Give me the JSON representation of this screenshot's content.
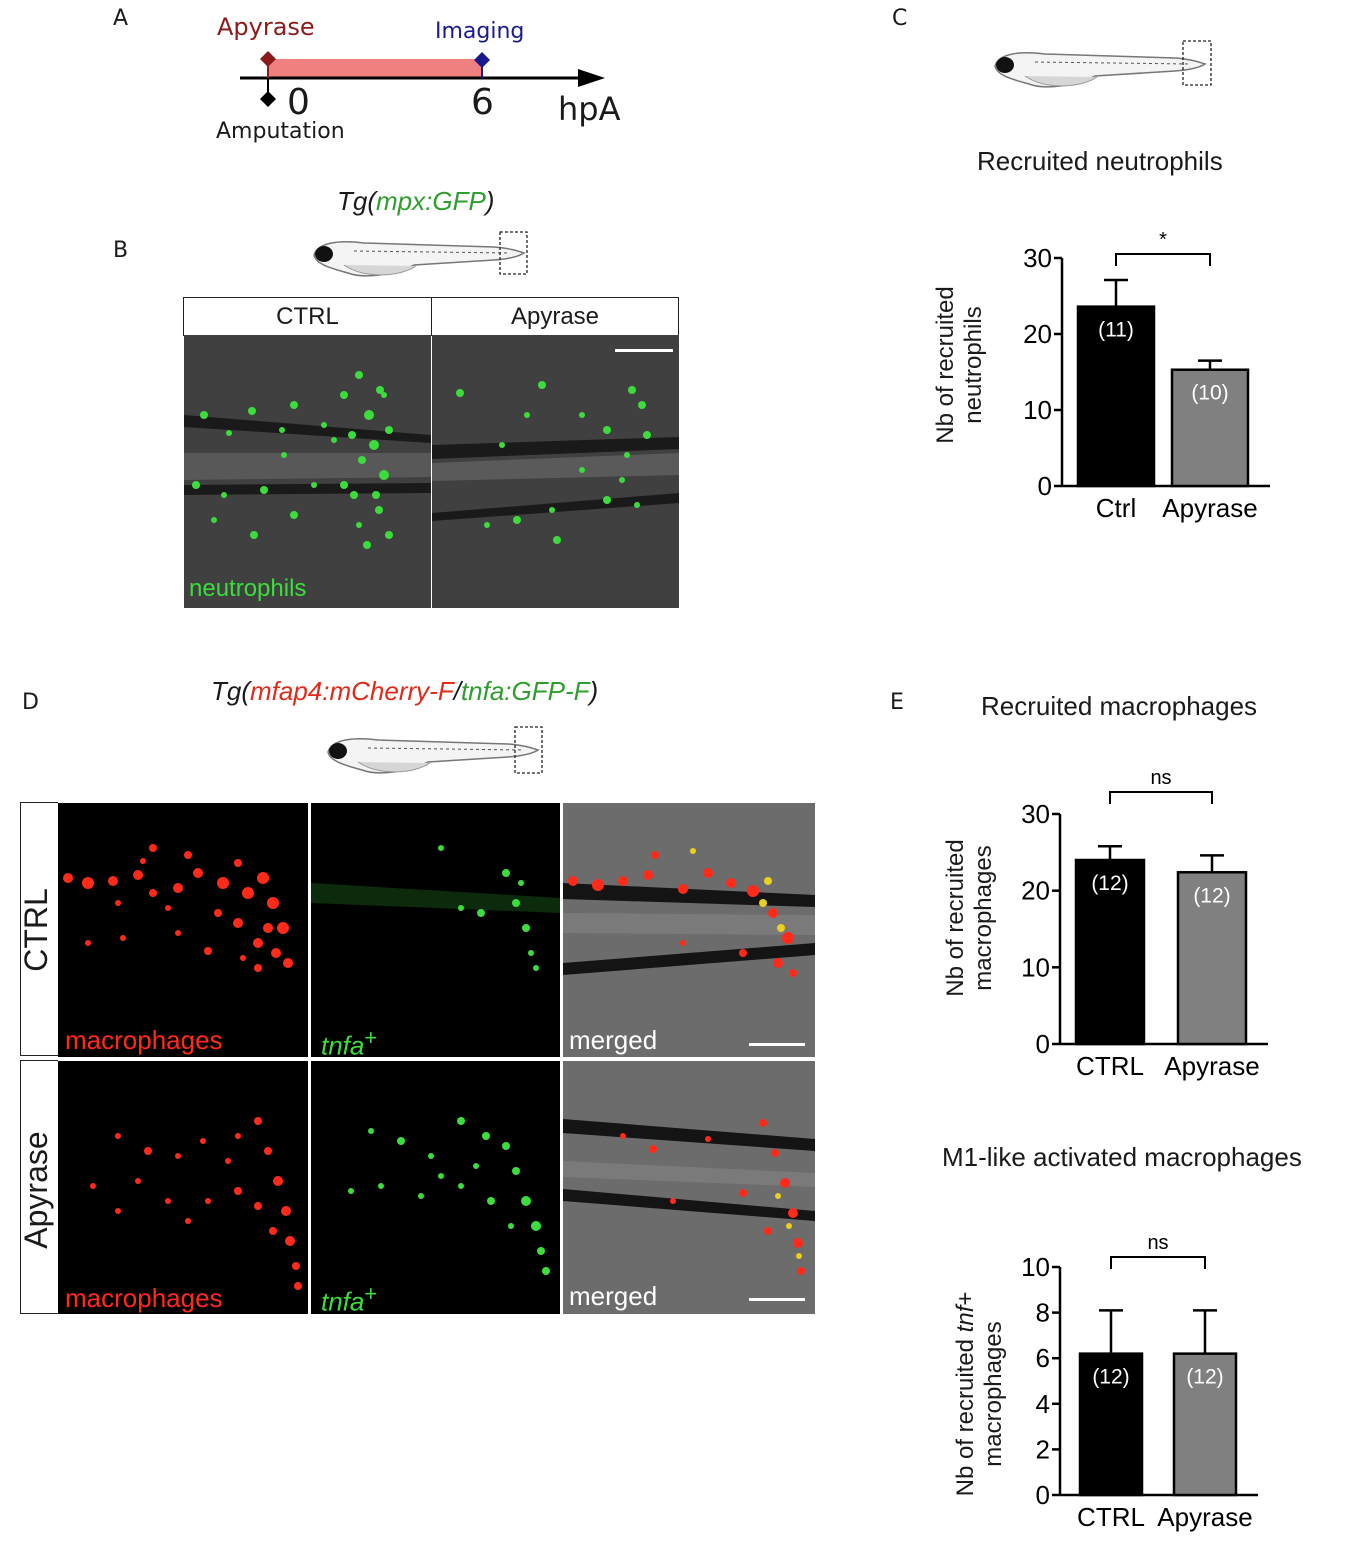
{
  "panels": {
    "a": "A",
    "b": "B",
    "c": "C",
    "d": "D",
    "e": "E"
  },
  "timeline": {
    "treatment": "Apyrase",
    "imaging": "Imaging",
    "event": "Amputation",
    "t0": "0",
    "t6": "6",
    "unit": "hpA",
    "colors": {
      "treatment": "#8b1a1a",
      "imaging": "#1a1a8c",
      "bar": "#f08080"
    }
  },
  "panel_b": {
    "transgene_prefix": "Tg(",
    "transgene_reporter": "mpx:GFP",
    "transgene_suffix": ")",
    "col_ctrl": "CTRL",
    "col_apyrase": "Apyrase",
    "cell_label": "neutrophils",
    "colors": {
      "gfp": "#3ddc3d"
    }
  },
  "panel_d": {
    "tg_prefix": "Tg(",
    "tg_red": "mfap4:mCherry-F",
    "tg_sep": "/",
    "tg_green": "tnfa:GFP-F",
    "tg_suffix": ")",
    "row_ctrl": "CTRL",
    "row_apyrase": "Apyrase",
    "label_macro": "macrophages",
    "label_tnfa": "tnfa",
    "label_tnfa_sup": "+",
    "label_merged": "merged",
    "colors": {
      "red": "#ff2a1a",
      "green": "#3ddc3d",
      "merged_yellow": "#e8d020"
    }
  },
  "charts_text": {
    "c_title": "Recruited neutrophils",
    "c_ylabel_1": "Nb of recruited",
    "c_ylabel_2": "neutrophils",
    "e1_title": "Recruited macrophages",
    "e1_ylabel_1": "Nb of recruited",
    "e1_ylabel_2": "macrophages",
    "e2_title": "M1-like activated macrophages",
    "e2_ylabel_1a": "Nb of recruited ",
    "e2_ylabel_1b": "tnf",
    "e2_ylabel_1c": "+",
    "e2_ylabel_2": "macrophages"
  },
  "chart_data": [
    {
      "type": "bar",
      "title": "Recruited neutrophils",
      "ylabel": "Nb of recruited neutrophils",
      "categories": [
        "Ctrl",
        "Apyrase"
      ],
      "values": [
        23.6,
        15.3
      ],
      "errors": [
        3.5,
        1.2
      ],
      "n_labels": [
        "(11)",
        "(10)"
      ],
      "ylim": [
        0,
        30
      ],
      "yticks": [
        0,
        10,
        20,
        30
      ],
      "significance": "*",
      "colors": [
        "#000000",
        "#808080"
      ]
    },
    {
      "type": "bar",
      "title": "Recruited macrophages",
      "ylabel": "Nb of recruited macrophages",
      "categories": [
        "CTRL",
        "Apyrase"
      ],
      "values": [
        24.0,
        22.4
      ],
      "errors": [
        1.8,
        2.2
      ],
      "n_labels": [
        "(12)",
        "(12)"
      ],
      "ylim": [
        0,
        30
      ],
      "yticks": [
        0,
        10,
        20,
        30
      ],
      "significance": "ns",
      "colors": [
        "#000000",
        "#808080"
      ]
    },
    {
      "type": "bar",
      "title": "M1-like activated macrophages",
      "ylabel": "Nb of recruited tnf+ macrophages",
      "categories": [
        "CTRL",
        "Apyrase"
      ],
      "values": [
        6.2,
        6.2
      ],
      "errors": [
        1.9,
        1.9
      ],
      "n_labels": [
        "(12)",
        "(12)"
      ],
      "ylim": [
        0,
        10
      ],
      "yticks": [
        0,
        2,
        4,
        6,
        8,
        10
      ],
      "significance": "ns",
      "colors": [
        "#000000",
        "#808080"
      ]
    }
  ]
}
